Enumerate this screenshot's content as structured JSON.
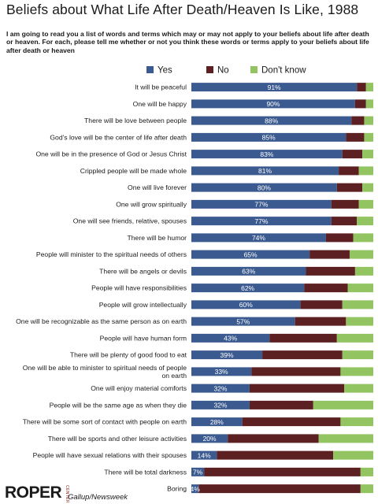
{
  "header": {
    "title": "Beliefs about What Life After Death/Heaven Is Like, 1988",
    "question": "I am going to read you a list of words and terms which may or may not apply to your beliefs about life after death or heaven. For each, please tell me whether or not you think these words or terms apply to your beliefs about life after death or heaven"
  },
  "footer": {
    "logo": "ROPER",
    "logo_sub": "CENTER",
    "source": "Gallup/Newsweek"
  },
  "chart_data": {
    "type": "bar",
    "orientation": "horizontal",
    "stacked": true,
    "legend_position": "top",
    "grid": false,
    "xlim": [
      0,
      100
    ],
    "series": [
      {
        "name": "Yes",
        "color": "#3b5a8f"
      },
      {
        "name": "No",
        "color": "#5c1f22"
      },
      {
        "name": "Don't know",
        "color": "#93c462"
      }
    ],
    "categories": [
      {
        "label": "It will be peaceful",
        "yes": 91,
        "no": 5,
        "dk": 4,
        "yes_label": "91%"
      },
      {
        "label": "One will be happy",
        "yes": 90,
        "no": 6,
        "dk": 4,
        "yes_label": "90%"
      },
      {
        "label": "There will be love between people",
        "yes": 88,
        "no": 7,
        "dk": 5,
        "yes_label": "88%"
      },
      {
        "label": "God's love will be the center of life after death",
        "yes": 85,
        "no": 10,
        "dk": 5,
        "yes_label": "85%"
      },
      {
        "label": "One will be in the presence of God or Jesus Christ",
        "yes": 83,
        "no": 11,
        "dk": 6,
        "yes_label": "83%"
      },
      {
        "label": "Crippled people will be made whole",
        "yes": 81,
        "no": 11,
        "dk": 8,
        "yes_label": "81%"
      },
      {
        "label": "One will live forever",
        "yes": 80,
        "no": 14,
        "dk": 6,
        "yes_label": "80%"
      },
      {
        "label": "One will grow spiritually",
        "yes": 77,
        "no": 15,
        "dk": 8,
        "yes_label": "77%"
      },
      {
        "label": "One will see friends, relative, spouses",
        "yes": 77,
        "no": 14,
        "dk": 9,
        "yes_label": "77%"
      },
      {
        "label": "There will be humor",
        "yes": 74,
        "no": 15,
        "dk": 11,
        "yes_label": "74%"
      },
      {
        "label": "People will minister to the spiritual needs of others",
        "yes": 65,
        "no": 22,
        "dk": 13,
        "yes_label": "65%"
      },
      {
        "label": "There will be angels or devils",
        "yes": 63,
        "no": 27,
        "dk": 10,
        "yes_label": "63%"
      },
      {
        "label": "People will have responsibilities",
        "yes": 62,
        "no": 24,
        "dk": 14,
        "yes_label": "62%"
      },
      {
        "label": "People will grow intellectually",
        "yes": 60,
        "no": 23,
        "dk": 17,
        "yes_label": "60%"
      },
      {
        "label": "One will be recognizable  as the same person as on earth",
        "yes": 57,
        "no": 28,
        "dk": 15,
        "yes_label": "57%"
      },
      {
        "label": "People will have human form",
        "yes": 43,
        "no": 37,
        "dk": 20,
        "yes_label": "43%"
      },
      {
        "label": "There will be plenty of good food to eat",
        "yes": 39,
        "no": 44,
        "dk": 17,
        "yes_label": "39%"
      },
      {
        "label": "One will be able to minister to spiritual needs of people on earth",
        "yes": 33,
        "no": 49,
        "dk": 18,
        "yes_label": "33%"
      },
      {
        "label": "One will enjoy material comforts",
        "yes": 32,
        "no": 52,
        "dk": 16,
        "yes_label": "32%"
      },
      {
        "label": "People will be the same age as when they die",
        "yes": 32,
        "no": 35,
        "dk": 33,
        "yes_label": "32%"
      },
      {
        "label": "There will be some sort of contact with people on earth",
        "yes": 28,
        "no": 54,
        "dk": 18,
        "yes_label": "28%"
      },
      {
        "label": "There will be sports and other leisure activities",
        "yes": 20,
        "no": 50,
        "dk": 30,
        "yes_label": "20%"
      },
      {
        "label": "People will have sexual relations with their spouses",
        "yes": 14,
        "no": 64,
        "dk": 22,
        "yes_label": "14%"
      },
      {
        "label": "There will be total darkness",
        "yes": 7,
        "no": 86,
        "dk": 7,
        "yes_label": "7%"
      },
      {
        "label": "Boring",
        "yes": 4,
        "no": 89,
        "dk": 7,
        "yes_label": "4%"
      }
    ]
  }
}
